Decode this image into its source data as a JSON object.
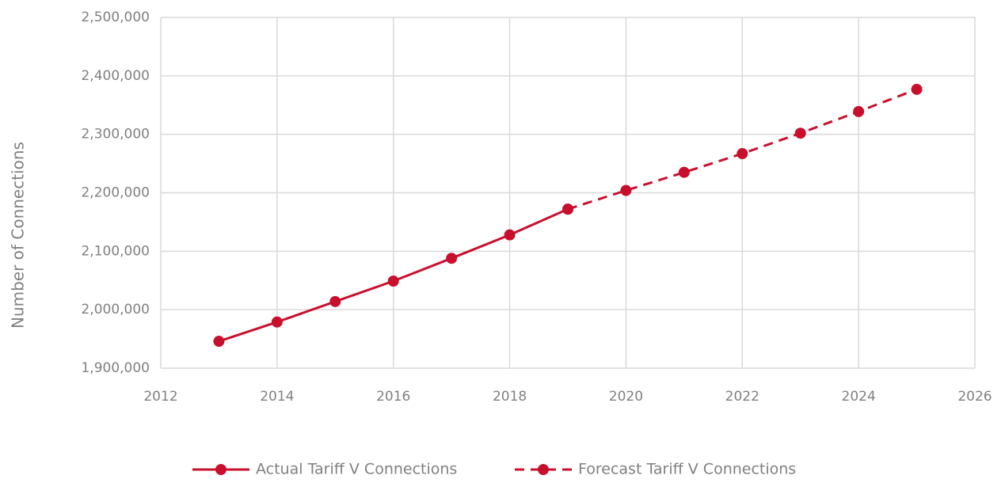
{
  "chart_data": {
    "type": "line",
    "y_label": "Number of Connections",
    "xlim": [
      2012,
      2026
    ],
    "xticks": [
      2012,
      2014,
      2016,
      2018,
      2020,
      2022,
      2024,
      2026
    ],
    "ylim": [
      1900000,
      2500000
    ],
    "yticks": [
      {
        "value": 1900000,
        "label": "1,900,000"
      },
      {
        "value": 2000000,
        "label": "2,000,000"
      },
      {
        "value": 2100000,
        "label": "2,100,000"
      },
      {
        "value": 2200000,
        "label": "2,200,000"
      },
      {
        "value": 2300000,
        "label": "2,300,000"
      },
      {
        "value": 2400000,
        "label": "2,400,000"
      },
      {
        "value": 2500000,
        "label": "2,500,000"
      }
    ],
    "grid": true,
    "legend": "bottom",
    "series": [
      {
        "name": "Actual Tariff V Connections",
        "color": "#c8102e",
        "linestyle": "solid",
        "x": [
          2013,
          2014,
          2015,
          2016,
          2017,
          2018,
          2019
        ],
        "values": [
          1946000,
          1979000,
          2014000,
          2049000,
          2088000,
          2128000,
          2172000
        ]
      },
      {
        "name": "Forecast Tariff V Connections",
        "color": "#c8102e",
        "linestyle": "dashed",
        "x": [
          2019,
          2020,
          2021,
          2022,
          2023,
          2024,
          2025
        ],
        "values": [
          2172000,
          2204000,
          2235000,
          2267000,
          2302000,
          2339000,
          2377000
        ]
      }
    ]
  }
}
